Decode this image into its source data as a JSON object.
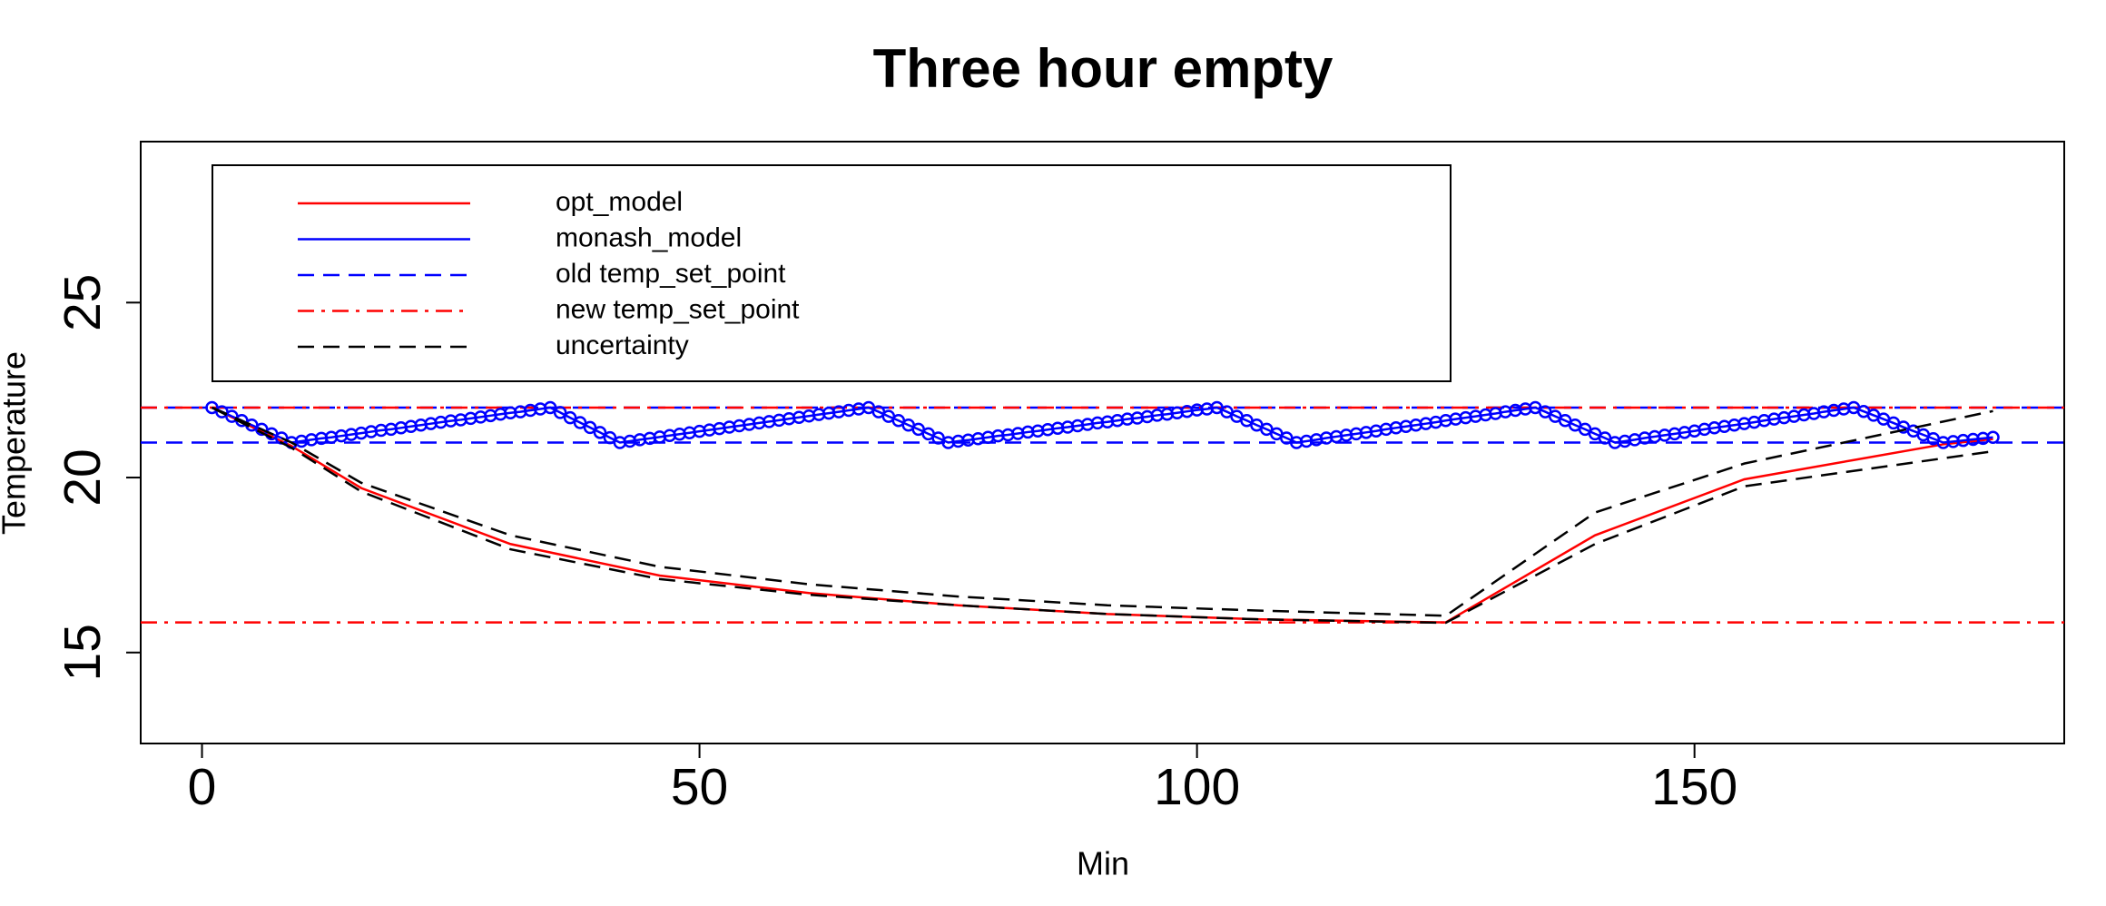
{
  "chart_data": {
    "type": "line",
    "title": "Three hour empty",
    "x_label": "Min",
    "y_label": "Temperature",
    "xlim": [
      -6.16,
      187.16
    ],
    "ylim": [
      12.4,
      29.6
    ],
    "xticks": [
      0,
      50,
      100,
      150
    ],
    "yticks": [
      15,
      20,
      25
    ],
    "grid": false,
    "series": [
      {
        "name": "opt_model",
        "color": "#ff0000",
        "style": "solid",
        "x": [
          1,
          9,
          16,
          31,
          46,
          61,
          76,
          91,
          106,
          125,
          140,
          155,
          175,
          180
        ],
        "values": [
          22,
          20.9,
          19.7,
          18.1,
          17.2,
          16.7,
          16.35,
          16.1,
          15.95,
          15.86,
          18.35,
          19.95,
          20.95,
          21.1
        ]
      },
      {
        "name": "monash_model",
        "color": "#0000ff",
        "style": "solid",
        "marker": "circle",
        "x": [
          1,
          2,
          3,
          4,
          5,
          6,
          7,
          8,
          9,
          10,
          11,
          12,
          13,
          14,
          15,
          16,
          17,
          18,
          19,
          20,
          21,
          22,
          23,
          24,
          25,
          26,
          27,
          28,
          29,
          30,
          31,
          32,
          33,
          34,
          35,
          36,
          37,
          38,
          39,
          40,
          41,
          42,
          43,
          44,
          45,
          46,
          47,
          48,
          49,
          50,
          51,
          52,
          53,
          54,
          55,
          56,
          57,
          58,
          59,
          60,
          61,
          62,
          63,
          64,
          65,
          66,
          67,
          68,
          69,
          70,
          71,
          72,
          73,
          74,
          75,
          76,
          77,
          78,
          79,
          80,
          81,
          82,
          83,
          84,
          85,
          86,
          87,
          88,
          89,
          90,
          91,
          92,
          93,
          94,
          95,
          96,
          97,
          98,
          99,
          100,
          101,
          102,
          103,
          104,
          105,
          106,
          107,
          108,
          109,
          110,
          111,
          112,
          113,
          114,
          115,
          116,
          117,
          118,
          119,
          120,
          121,
          122,
          123,
          124,
          125,
          126,
          127,
          128,
          129,
          130,
          131,
          132,
          133,
          134,
          135,
          136,
          137,
          138,
          139,
          140,
          141,
          142,
          143,
          144,
          145,
          146,
          147,
          148,
          149,
          150,
          151,
          152,
          153,
          154,
          155,
          156,
          157,
          158,
          159,
          160,
          161,
          162,
          163,
          164,
          165,
          166,
          167,
          168,
          169,
          170,
          171,
          172,
          173,
          174,
          175,
          176,
          177,
          178,
          179,
          180
        ],
        "values": [
          22,
          21.88,
          21.75,
          21.63,
          21.5,
          21.38,
          21.25,
          21.13,
          21.0,
          21.04,
          21.08,
          21.12,
          21.15,
          21.19,
          21.23,
          21.27,
          21.31,
          21.35,
          21.38,
          21.42,
          21.46,
          21.5,
          21.54,
          21.58,
          21.62,
          21.65,
          21.69,
          21.73,
          21.77,
          21.81,
          21.85,
          21.88,
          21.92,
          21.96,
          22,
          21.86,
          21.71,
          21.57,
          21.43,
          21.29,
          21.14,
          21.0,
          21.04,
          21.08,
          21.12,
          21.16,
          21.2,
          21.24,
          21.28,
          21.32,
          21.36,
          21.4,
          21.44,
          21.48,
          21.52,
          21.56,
          21.6,
          21.64,
          21.68,
          21.72,
          21.76,
          21.8,
          21.84,
          21.88,
          21.92,
          21.96,
          22,
          21.88,
          21.75,
          21.63,
          21.5,
          21.38,
          21.25,
          21.13,
          21.0,
          21.04,
          21.07,
          21.11,
          21.15,
          21.19,
          21.22,
          21.26,
          21.3,
          21.33,
          21.37,
          21.41,
          21.44,
          21.48,
          21.52,
          21.56,
          21.59,
          21.63,
          21.67,
          21.7,
          21.74,
          21.78,
          21.81,
          21.85,
          21.89,
          21.93,
          21.96,
          22,
          21.88,
          21.75,
          21.63,
          21.5,
          21.38,
          21.25,
          21.13,
          21.0,
          21.04,
          21.08,
          21.13,
          21.17,
          21.21,
          21.25,
          21.29,
          21.33,
          21.38,
          21.42,
          21.46,
          21.5,
          21.54,
          21.58,
          21.63,
          21.67,
          21.71,
          21.75,
          21.79,
          21.83,
          21.88,
          21.92,
          21.96,
          22,
          21.88,
          21.75,
          21.63,
          21.5,
          21.38,
          21.25,
          21.13,
          21.0,
          21.04,
          21.08,
          21.13,
          21.17,
          21.21,
          21.25,
          21.29,
          21.33,
          21.38,
          21.42,
          21.46,
          21.5,
          21.54,
          21.58,
          21.63,
          21.67,
          21.71,
          21.75,
          21.79,
          21.83,
          21.88,
          21.92,
          21.96,
          22,
          21.89,
          21.78,
          21.67,
          21.56,
          21.44,
          21.33,
          21.22,
          21.11,
          21.0,
          21.03,
          21.06,
          21.09,
          21.12,
          21.15
        ]
      },
      {
        "name": "uncertainty",
        "color": "#000000",
        "style": "dashed",
        "x": [
          1,
          9,
          16,
          31,
          46,
          61,
          76,
          91,
          106,
          125,
          140,
          155,
          175,
          180
        ],
        "values": [
          22,
          21.0,
          19.85,
          18.35,
          17.45,
          16.95,
          16.6,
          16.35,
          16.2,
          16.05,
          19.0,
          20.4,
          21.6,
          21.9
        ],
        "lower": [
          22,
          20.85,
          19.6,
          17.95,
          17.1,
          16.65,
          16.35,
          16.1,
          15.95,
          15.85,
          18.1,
          19.75,
          20.55,
          20.75
        ]
      }
    ],
    "hlines": [
      {
        "name": "old temp_set_point",
        "color": "#0000ff",
        "style": "dashed",
        "values": [
          21,
          22
        ]
      },
      {
        "name": "new temp_set_point",
        "color": "#ff0000",
        "style": "dashdot",
        "values": [
          22,
          15.86
        ]
      }
    ],
    "legend_order": [
      "opt_model",
      "monash_model",
      "old temp_set_point",
      "new temp_set_point",
      "uncertainty"
    ],
    "legend": "top-left"
  }
}
